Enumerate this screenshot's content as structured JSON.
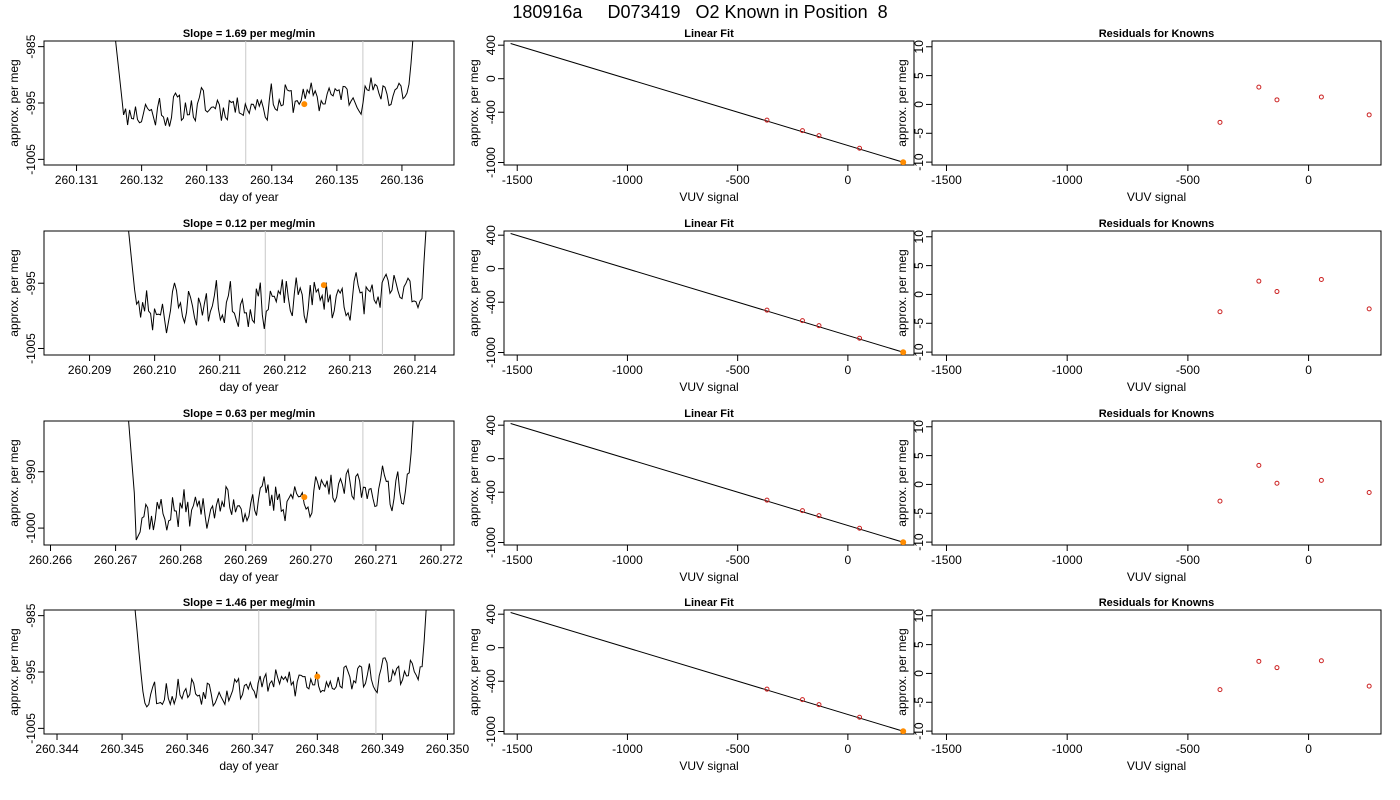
{
  "page": {
    "title": "180916a     D073419   O2 Known in Position  8"
  },
  "chart_data": [
    {
      "type": "line",
      "title": "Slope =  1.69  per meg/min",
      "xlabel": "day of year",
      "ylabel": "approx. per meg",
      "xlim": [
        260.1305,
        260.1368
      ],
      "ylim": [
        -1006,
        -984
      ],
      "xticks": [
        "260.131",
        "260.132",
        "260.133",
        "260.134",
        "260.135",
        "260.136"
      ],
      "yticks": [
        "-985",
        "-995",
        "-1005"
      ],
      "vlines": [
        260.1336,
        260.1354
      ],
      "highlight": [
        260.1345,
        -995.2
      ],
      "trace": {
        "x_start": 260.1316,
        "x_end": 260.1362,
        "left_x": 260.1314,
        "right_x": 260.1364,
        "base": -997,
        "trend": 4.5,
        "noise": 1.5,
        "seed": 11
      }
    },
    {
      "type": "scatter",
      "title": "Linear Fit",
      "xlabel": "VUV signal",
      "ylabel": "approx. per meg",
      "xlim": [
        -1560,
        300
      ],
      "ylim": [
        -1030,
        450
      ],
      "xticks": [
        -1500,
        -1000,
        -500,
        0
      ],
      "yticks": [
        400,
        0,
        -400,
        -1000
      ],
      "line": [
        [
          -1530,
          420
        ],
        [
          255,
          -1000
        ]
      ],
      "points": [
        [
          -367,
          -495
        ],
        [
          -206,
          -620
        ],
        [
          -131,
          -680
        ],
        [
          53,
          -830
        ],
        [
          251,
          -997
        ]
      ],
      "highlight": [
        251,
        -997
      ]
    },
    {
      "type": "scatter",
      "title": "Residuals for Knowns",
      "xlabel": "VUV signal",
      "ylabel": "approx. per meg",
      "xlim": [
        -1560,
        300
      ],
      "ylim": [
        -10.5,
        11
      ],
      "xticks": [
        -1500,
        -1000,
        -500,
        0
      ],
      "yticks": [
        10,
        5,
        0,
        -5,
        -10
      ],
      "points": [
        [
          -367,
          -3.1
        ],
        [
          -206,
          3.0
        ],
        [
          -131,
          0.8
        ],
        [
          53,
          1.3
        ],
        [
          251,
          -1.8
        ]
      ]
    },
    {
      "type": "line",
      "title": "Slope =  0.12  per meg/min",
      "xlabel": "day of year",
      "ylabel": "approx. per meg",
      "xlim": [
        260.2083,
        260.2146
      ],
      "ylim": [
        -1006,
        -987
      ],
      "xticks": [
        "260.209",
        "260.210",
        "260.211",
        "260.212",
        "260.213",
        "260.214"
      ],
      "yticks": [
        "-995",
        "-1005"
      ],
      "vlines": [
        260.2117,
        260.2135
      ],
      "highlight": [
        260.2126,
        -995.3
      ],
      "trace": {
        "x_start": 260.2096,
        "x_end": 260.2142,
        "left_x": 260.2094,
        "right_x": 260.2144,
        "base": -999,
        "trend": 2.5,
        "noise": 1.7,
        "seed": 23
      }
    },
    {
      "type": "scatter",
      "title": "Linear Fit",
      "xlabel": "VUV signal",
      "ylabel": "approx. per meg",
      "xlim": [
        -1560,
        300
      ],
      "ylim": [
        -1030,
        450
      ],
      "xticks": [
        -1500,
        -1000,
        -500,
        0
      ],
      "yticks": [
        400,
        0,
        -400,
        -1000
      ],
      "line": [
        [
          -1530,
          420
        ],
        [
          255,
          -1000
        ]
      ],
      "points": [
        [
          -367,
          -495
        ],
        [
          -206,
          -620
        ],
        [
          -131,
          -680
        ],
        [
          53,
          -830
        ],
        [
          251,
          -997
        ]
      ],
      "highlight": [
        251,
        -997
      ]
    },
    {
      "type": "scatter",
      "title": "Residuals for Knowns",
      "xlabel": "VUV signal",
      "ylabel": "approx. per meg",
      "xlim": [
        -1560,
        300
      ],
      "ylim": [
        -10.5,
        11
      ],
      "xticks": [
        -1500,
        -1000,
        -500,
        0
      ],
      "yticks": [
        10,
        5,
        0,
        -5,
        -10
      ],
      "points": [
        [
          -367,
          -3.0
        ],
        [
          -206,
          2.3
        ],
        [
          -131,
          0.5
        ],
        [
          53,
          2.6
        ],
        [
          251,
          -2.5
        ]
      ]
    },
    {
      "type": "line",
      "title": "Slope =  0.63  per meg/min",
      "xlabel": "day of year",
      "ylabel": "approx. per meg",
      "xlim": [
        260.2659,
        260.2722
      ],
      "ylim": [
        -1003,
        -981
      ],
      "xticks": [
        "260.266",
        "260.267",
        "260.268",
        "260.269",
        "260.270",
        "260.271",
        "260.272"
      ],
      "yticks": [
        "-990",
        "-1000"
      ],
      "vlines": [
        260.2691,
        260.2708
      ],
      "highlight": [
        260.2699,
        -994.5
      ],
      "trace": {
        "x_start": 260.2672,
        "x_end": 260.2716,
        "left_x": 260.267,
        "right_x": 260.2718,
        "base": -998,
        "trend": 6.0,
        "noise": 1.8,
        "seed": 37
      }
    },
    {
      "type": "scatter",
      "title": "Linear Fit",
      "xlabel": "VUV signal",
      "ylabel": "approx. per meg",
      "xlim": [
        -1560,
        300
      ],
      "ylim": [
        -1030,
        450
      ],
      "xticks": [
        -1500,
        -1000,
        -500,
        0
      ],
      "yticks": [
        400,
        0,
        -400,
        -1000
      ],
      "line": [
        [
          -1530,
          420
        ],
        [
          255,
          -1000
        ]
      ],
      "points": [
        [
          -367,
          -495
        ],
        [
          -206,
          -620
        ],
        [
          -131,
          -680
        ],
        [
          53,
          -830
        ],
        [
          251,
          -997
        ]
      ],
      "highlight": [
        251,
        -997
      ]
    },
    {
      "type": "scatter",
      "title": "Residuals for Knowns",
      "xlabel": "VUV signal",
      "ylabel": "approx. per meg",
      "xlim": [
        -1560,
        300
      ],
      "ylim": [
        -10.5,
        11
      ],
      "xticks": [
        -1500,
        -1000,
        -500,
        0
      ],
      "yticks": [
        10,
        5,
        0,
        -5,
        -10
      ],
      "points": [
        [
          -367,
          -2.9
        ],
        [
          -206,
          3.3
        ],
        [
          -131,
          0.2
        ],
        [
          53,
          0.7
        ],
        [
          251,
          -1.4
        ]
      ]
    },
    {
      "type": "line",
      "title": "Slope =  1.46  per meg/min",
      "xlabel": "day of year",
      "ylabel": "approx. per meg",
      "xlim": [
        260.3438,
        260.3501
      ],
      "ylim": [
        -1006,
        -984
      ],
      "xticks": [
        "260.344",
        "260.345",
        "260.346",
        "260.347",
        "260.348",
        "260.349",
        "260.350"
      ],
      "yticks": [
        "-985",
        "-995",
        "-1005"
      ],
      "vlines": [
        260.3471,
        260.3489
      ],
      "highlight": [
        260.348,
        -995.8
      ],
      "trace": {
        "x_start": 260.3452,
        "x_end": 260.3497,
        "left_x": 260.345,
        "right_x": 260.3499,
        "base": -999,
        "trend": 4.0,
        "noise": 1.4,
        "seed": 53
      }
    },
    {
      "type": "scatter",
      "title": "Linear Fit",
      "xlabel": "VUV signal",
      "ylabel": "approx. per meg",
      "xlim": [
        -1560,
        300
      ],
      "ylim": [
        -1030,
        450
      ],
      "xticks": [
        -1500,
        -1000,
        -500,
        0
      ],
      "yticks": [
        400,
        0,
        -400,
        -1000
      ],
      "line": [
        [
          -1530,
          420
        ],
        [
          255,
          -1000
        ]
      ],
      "points": [
        [
          -367,
          -495
        ],
        [
          -206,
          -620
        ],
        [
          -131,
          -680
        ],
        [
          53,
          -830
        ],
        [
          251,
          -997
        ]
      ],
      "highlight": [
        251,
        -997
      ]
    },
    {
      "type": "scatter",
      "title": "Residuals for Knowns",
      "xlabel": "VUV signal",
      "ylabel": "approx. per meg",
      "xlim": [
        -1560,
        300
      ],
      "ylim": [
        -10.5,
        11
      ],
      "xticks": [
        -1500,
        -1000,
        -500,
        0
      ],
      "yticks": [
        10,
        5,
        0,
        -5,
        -10
      ],
      "points": [
        [
          -367,
          -2.8
        ],
        [
          -206,
          2.1
        ],
        [
          -131,
          1.0
        ],
        [
          53,
          2.2
        ],
        [
          251,
          -2.2
        ]
      ]
    }
  ],
  "colors": {
    "trace": "#000000",
    "vline": "#c8c8c8",
    "highlight": "#ff8c00",
    "residual_point": "#cc2222",
    "fit_point": "#cc2222"
  }
}
